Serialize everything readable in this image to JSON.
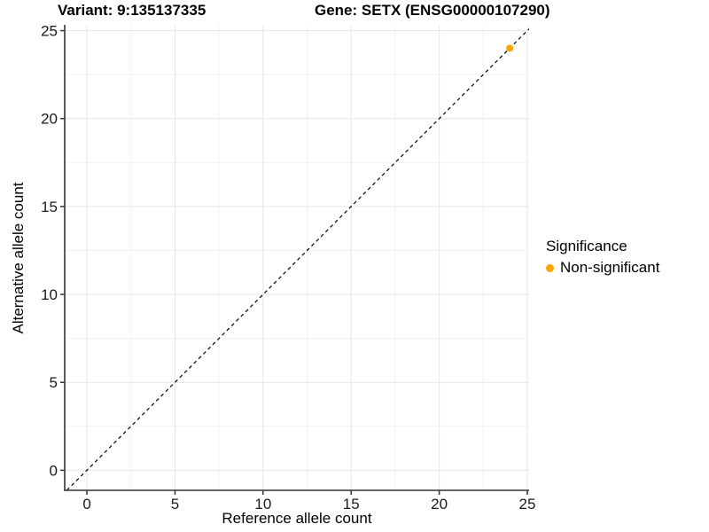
{
  "chart_data": {
    "type": "scatter",
    "titles": {
      "variant": "Variant: 9:135137335",
      "gene": "Gene: SETX (ENSG00000107290)"
    },
    "xlabel": "Reference allele count",
    "ylabel": "Alternative allele count",
    "x_ticks": [
      0,
      5,
      10,
      15,
      20,
      25
    ],
    "y_ticks": [
      0,
      5,
      10,
      15,
      20,
      25
    ],
    "x_minor_ticks": [
      2.5,
      7.5,
      12.5,
      17.5,
      22.5
    ],
    "y_minor_ticks": [
      2.5,
      7.5,
      12.5,
      17.5,
      22.5
    ],
    "x_range": [
      -1.26,
      25.1
    ],
    "y_range": [
      -1.14,
      25.28
    ],
    "grid": "major+minor",
    "series": [
      {
        "name": "Non-significant",
        "color": "#FFA500",
        "points": [
          {
            "x": 24,
            "y": 24
          }
        ]
      }
    ],
    "reference_line": {
      "kind": "identity",
      "slope": 1,
      "intercept": 0,
      "style": "dashed",
      "color": "#000000"
    },
    "legend": {
      "title": "Significance",
      "position": "right",
      "items": [
        {
          "label": "Non-significant",
          "color": "#FFA500"
        }
      ]
    }
  },
  "style": {
    "background": "#FFFFFF",
    "grid_major_color": "#E5E5E5",
    "grid_minor_color": "#F2F2F2",
    "axis_line_color": "#333333",
    "tick_label_color": "#1A1A1A",
    "title_color": "#000000"
  }
}
